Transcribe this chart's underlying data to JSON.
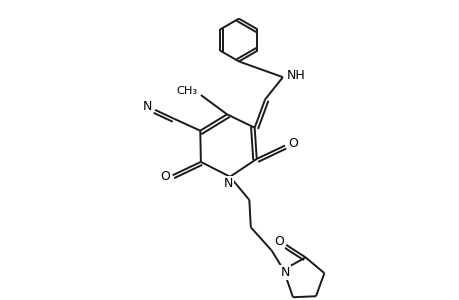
{
  "background_color": "#ffffff",
  "line_color": "#1a1a1a",
  "line_width": 1.4,
  "figsize": [
    4.6,
    3.0
  ],
  "dpi": 100,
  "xlim": [
    0.0,
    1.0
  ],
  "ylim": [
    0.0,
    1.0
  ]
}
